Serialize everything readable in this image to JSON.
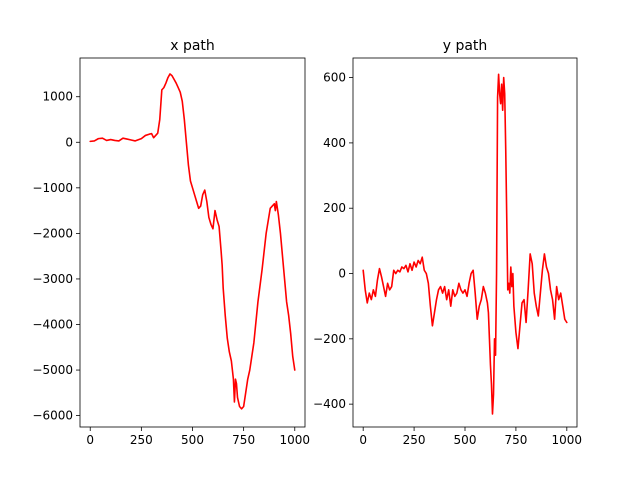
{
  "chart_data": [
    {
      "type": "line",
      "title": "x path",
      "xlabel": "",
      "ylabel": "",
      "xlim": [
        -50,
        1050
      ],
      "ylim": [
        -6250,
        1850
      ],
      "xticks": [
        0,
        250,
        500,
        750,
        1000
      ],
      "yticks": [
        1000,
        0,
        -1000,
        -2000,
        -3000,
        -4000,
        -5000,
        -6000
      ],
      "xtick_labels": [
        "0",
        "250",
        "500",
        "750",
        "1000"
      ],
      "ytick_labels": [
        "1000",
        "0",
        "−1000",
        "−2000",
        "−3000",
        "−4000",
        "−5000",
        "−6000"
      ],
      "grid": false,
      "series": [
        {
          "color": "#ff0000",
          "x": [
            0,
            20,
            40,
            60,
            80,
            100,
            120,
            140,
            160,
            180,
            200,
            220,
            250,
            270,
            290,
            300,
            310,
            320,
            330,
            340,
            350,
            360,
            370,
            380,
            390,
            400,
            410,
            420,
            430,
            440,
            450,
            460,
            470,
            480,
            490,
            500,
            510,
            520,
            530,
            540,
            550,
            560,
            570,
            580,
            590,
            600,
            610,
            620,
            630,
            640,
            645,
            650,
            660,
            670,
            680,
            690,
            700,
            705,
            710,
            715,
            720,
            730,
            740,
            750,
            760,
            770,
            780,
            790,
            800,
            820,
            840,
            860,
            880,
            890,
            900,
            905,
            910,
            920,
            930,
            940,
            950,
            960,
            970,
            980,
            990,
            1000
          ],
          "y": [
            20,
            30,
            80,
            90,
            40,
            60,
            40,
            30,
            90,
            70,
            50,
            30,
            80,
            150,
            180,
            190,
            100,
            150,
            200,
            500,
            1150,
            1200,
            1300,
            1420,
            1500,
            1460,
            1380,
            1300,
            1200,
            1100,
            900,
            500,
            0,
            -500,
            -850,
            -1000,
            -1150,
            -1300,
            -1450,
            -1400,
            -1150,
            -1050,
            -1300,
            -1650,
            -1800,
            -1900,
            -1500,
            -1700,
            -1850,
            -2400,
            -2700,
            -3200,
            -3800,
            -4300,
            -4600,
            -4800,
            -5200,
            -5700,
            -5200,
            -5300,
            -5600,
            -5800,
            -5850,
            -5800,
            -5500,
            -5200,
            -5000,
            -4700,
            -4400,
            -3500,
            -2800,
            -2000,
            -1450,
            -1400,
            -1350,
            -1500,
            -1300,
            -1600,
            -2000,
            -2500,
            -3000,
            -3500,
            -3800,
            -4200,
            -4700,
            -5000
          ]
        }
      ]
    },
    {
      "type": "line",
      "title": "y path",
      "xlabel": "",
      "ylabel": "",
      "xlim": [
        -50,
        1050
      ],
      "ylim": [
        -470,
        660
      ],
      "xticks": [
        0,
        250,
        500,
        750,
        1000
      ],
      "yticks": [
        600,
        400,
        200,
        0,
        -200,
        -400
      ],
      "xtick_labels": [
        "0",
        "250",
        "500",
        "750",
        "1000"
      ],
      "ytick_labels": [
        "600",
        "400",
        "200",
        "0",
        "−200",
        "−400"
      ],
      "grid": false,
      "series": [
        {
          "color": "#ff0000",
          "x": [
            0,
            10,
            20,
            30,
            40,
            50,
            60,
            70,
            80,
            90,
            100,
            110,
            120,
            130,
            140,
            150,
            160,
            170,
            180,
            190,
            200,
            210,
            220,
            230,
            240,
            250,
            260,
            270,
            280,
            290,
            300,
            310,
            320,
            330,
            340,
            350,
            360,
            370,
            380,
            390,
            400,
            410,
            420,
            430,
            440,
            450,
            460,
            470,
            480,
            490,
            500,
            510,
            520,
            530,
            540,
            550,
            560,
            570,
            580,
            590,
            600,
            610,
            615,
            620,
            625,
            630,
            635,
            640,
            645,
            650,
            655,
            660,
            665,
            670,
            675,
            680,
            685,
            690,
            695,
            700,
            705,
            710,
            715,
            720,
            725,
            730,
            735,
            740,
            750,
            760,
            770,
            780,
            790,
            800,
            810,
            820,
            830,
            840,
            850,
            860,
            870,
            880,
            890,
            900,
            910,
            920,
            930,
            940,
            950,
            960,
            970,
            980,
            990,
            1000
          ],
          "y": [
            10,
            -50,
            -90,
            -60,
            -80,
            -50,
            -70,
            -20,
            15,
            -10,
            -40,
            -70,
            -30,
            -50,
            -40,
            10,
            0,
            10,
            5,
            20,
            15,
            25,
            5,
            30,
            10,
            35,
            20,
            40,
            30,
            50,
            10,
            0,
            -30,
            -100,
            -160,
            -120,
            -80,
            -50,
            -40,
            -60,
            -40,
            -80,
            -50,
            -100,
            -50,
            -70,
            -60,
            -30,
            -50,
            -60,
            -50,
            -70,
            -30,
            0,
            10,
            -60,
            -140,
            -100,
            -80,
            -40,
            -60,
            -90,
            -120,
            -200,
            -280,
            -340,
            -430,
            -370,
            -200,
            -250,
            0,
            540,
            610,
            550,
            520,
            580,
            500,
            600,
            550,
            380,
            170,
            -50,
            -30,
            -60,
            20,
            -40,
            0,
            -100,
            -180,
            -230,
            -160,
            -90,
            -80,
            -150,
            -50,
            60,
            30,
            -60,
            -100,
            -130,
            -60,
            10,
            60,
            20,
            0,
            -50,
            -80,
            -140,
            -40,
            -80,
            -60,
            -100,
            -140,
            -150
          ]
        }
      ]
    }
  ]
}
